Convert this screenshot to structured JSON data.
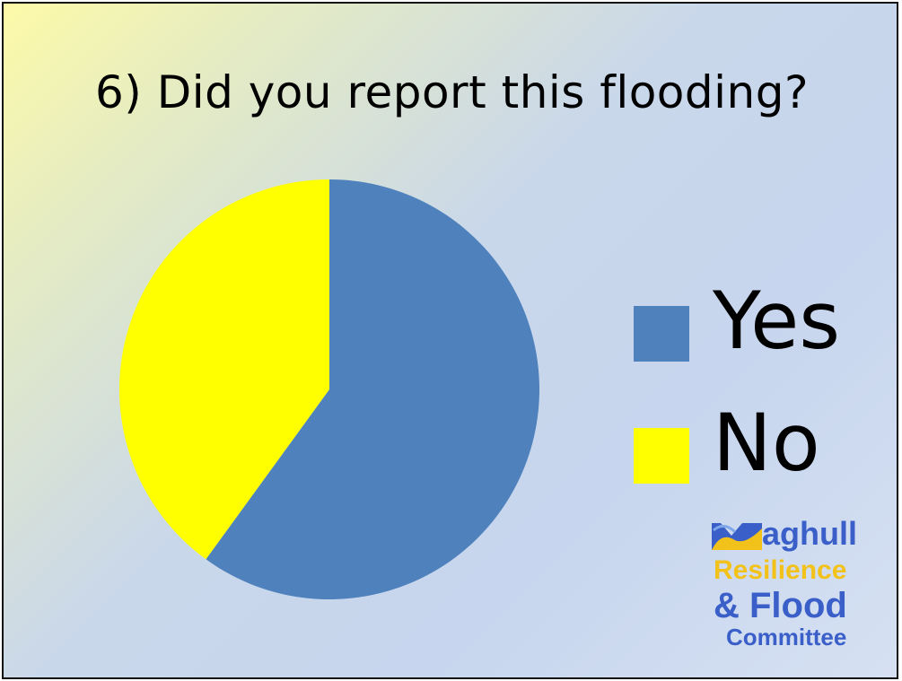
{
  "chart_data": {
    "type": "pie",
    "title": "6) Did you report this flooding?",
    "categories": [
      "Yes",
      "No"
    ],
    "values": [
      60,
      40
    ],
    "colors": [
      "#4f81bd",
      "#ffff00"
    ],
    "legend_position": "right"
  },
  "logo": {
    "line1": "aghull",
    "line2": "Resilience",
    "line3": "& Flood",
    "line4": "Committee",
    "icon": "maghull-m-wave-icon"
  }
}
